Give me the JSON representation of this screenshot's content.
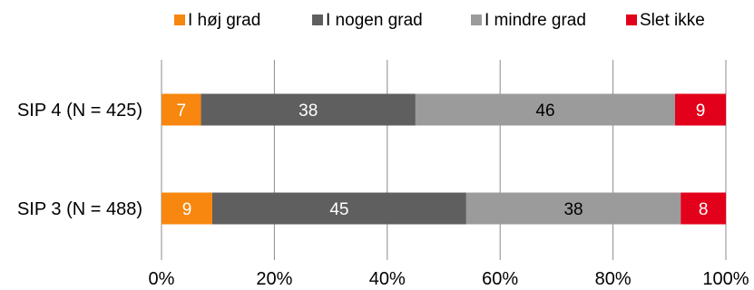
{
  "chart_data": {
    "type": "bar",
    "orientation": "horizontal",
    "stacked": "percent",
    "title": "",
    "xlabel": "",
    "ylabel": "",
    "xlim": [
      0,
      100
    ],
    "x_ticks": [
      "0%",
      "20%",
      "40%",
      "60%",
      "80%",
      "100%"
    ],
    "grid": true,
    "legend_position": "top",
    "categories": [
      "SIP 4 (N = 425)",
      "SIP 3 (N = 488)"
    ],
    "series": [
      {
        "name": "I høj grad",
        "color": "#F7870F",
        "label_color": "#ffffff",
        "values": [
          7,
          9
        ]
      },
      {
        "name": "I nogen grad",
        "color": "#5F5F5F",
        "label_color": "#ffffff",
        "values": [
          38,
          45
        ]
      },
      {
        "name": "I mindre grad",
        "color": "#9B9B9B",
        "label_color": "#000000",
        "values": [
          46,
          38
        ]
      },
      {
        "name": "Slet ikke",
        "color": "#E2001A",
        "label_color": "#ffffff",
        "values": [
          9,
          8
        ]
      }
    ]
  }
}
